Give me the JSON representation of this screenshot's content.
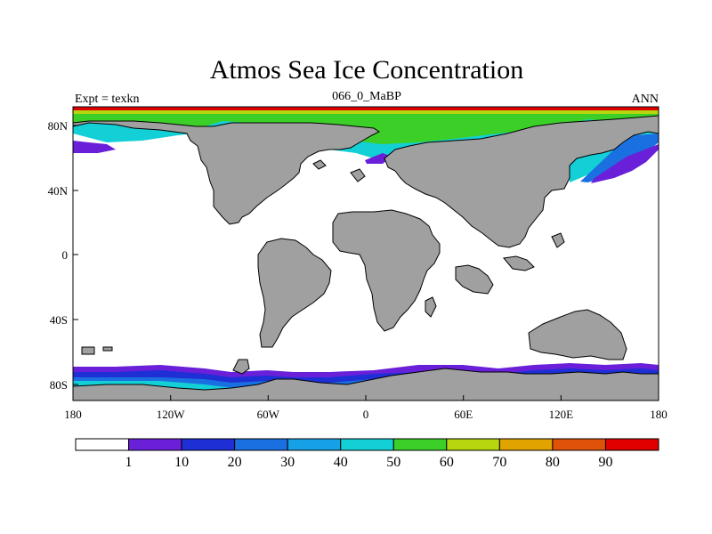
{
  "title": "Atmos Sea Ice Concentration",
  "left_label": "Expt = texkn",
  "center_label": "066_0_MaBP",
  "right_label": "ANN",
  "x_ticks": [
    "180",
    "120W",
    "60W",
    "0",
    "60E",
    "120E",
    "180"
  ],
  "y_ticks": [
    "80N",
    "40N",
    "0",
    "40S",
    "80S"
  ],
  "colorbar": {
    "labels": [
      "1",
      "10",
      "20",
      "30",
      "40",
      "50",
      "60",
      "70",
      "80",
      "90"
    ],
    "colors": [
      "#ffffff",
      "#6a1fd9",
      "#1e2fd6",
      "#1a70e0",
      "#16a0e6",
      "#13cfd6",
      "#3ccf28",
      "#b8d60e",
      "#e0a300",
      "#e0520a",
      "#e00000"
    ]
  },
  "colors": {
    "land": "#a0a0a0",
    "outline": "#000000",
    "background": "#ffffff"
  },
  "chart_data": {
    "type": "heatmap",
    "title": "Atmos Sea Ice Concentration",
    "variable": "sea ice concentration (%)",
    "x_range": [
      -180,
      180
    ],
    "y_range": [
      -90,
      90
    ],
    "x_tick_labels": [
      "180",
      "120W",
      "60W",
      "0",
      "60E",
      "120E",
      "180"
    ],
    "y_tick_labels": [
      "80N",
      "40N",
      "0",
      "40S",
      "80S"
    ],
    "contour_levels": [
      1,
      10,
      20,
      30,
      40,
      50,
      60,
      70,
      80,
      90
    ],
    "experiment": "texkn",
    "period": "066_0_MaBP",
    "season": "ANN"
  }
}
